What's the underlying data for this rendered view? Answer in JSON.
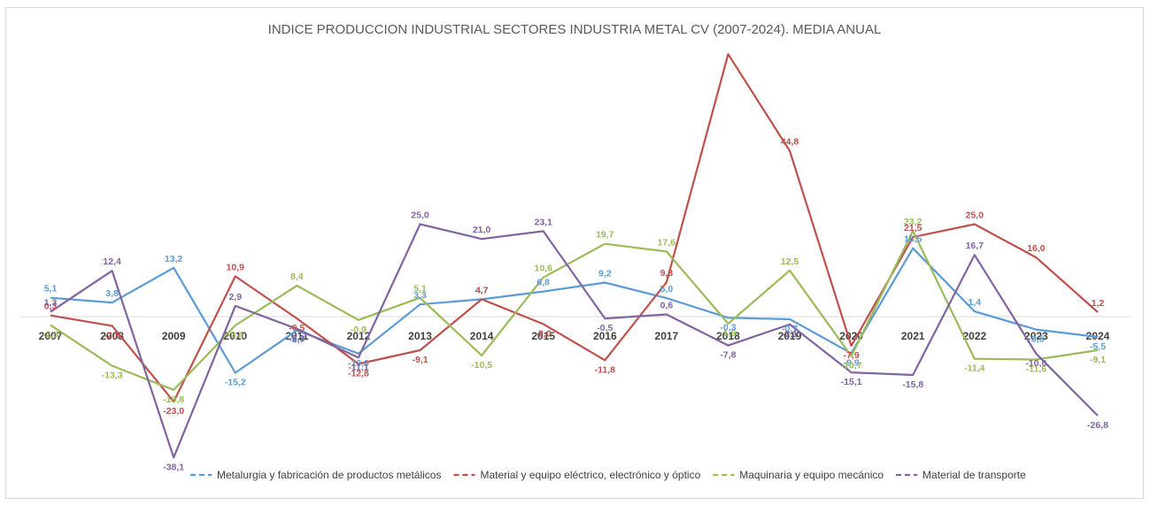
{
  "chart_data": {
    "type": "line",
    "title": "INDICE PRODUCCION INDUSTRIAL SECTORES INDUSTRIA METAL CV (2007-2024).  MEDIA ANUAL",
    "xlabel": "",
    "ylabel": "",
    "categories": [
      "2007",
      "2008",
      "2009",
      "2010",
      "2011",
      "2012",
      "2013",
      "2014",
      "2015",
      "2016",
      "2017",
      "2018",
      "2019",
      "2020",
      "2021",
      "2022",
      "2023",
      "2024"
    ],
    "ylim": [
      -45,
      65
    ],
    "grid": false,
    "legend_position": "bottom",
    "series": [
      {
        "name": "Metalurgia y fabricación de productos metálicos",
        "color": "#5b9bd5",
        "values": [
          5.1,
          3.8,
          13.2,
          -15.2,
          -3.7,
          -10.0,
          3.3,
          4.7,
          6.8,
          9.2,
          5.0,
          -0.3,
          -0.7,
          -9.9,
          18.5,
          1.4,
          -3.5,
          -5.5
        ],
        "labels": [
          "5,1",
          "3,8",
          "13,2",
          "-15,2",
          "-3,7",
          "-10,0",
          "3,3",
          "4,7",
          "6,8",
          "9,2",
          "5,0",
          "-0,3",
          "-0,7",
          "-9,9",
          "18,5",
          "1,4",
          "-3,5",
          "-5,5"
        ]
      },
      {
        "name": "Material y equipo eléctrico, electrónico y óptico",
        "color": "#c0504d",
        "values": [
          0.3,
          -2.5,
          -23.0,
          10.9,
          -0.5,
          -12.8,
          -9.1,
          4.7,
          -2.0,
          -11.8,
          9.3,
          71.0,
          44.8,
          -7.9,
          21.5,
          25.0,
          16.0,
          1.2
        ],
        "labels": [
          "0,3",
          "-2,5",
          "-23,0",
          "10,9",
          "-0,5",
          "-12,8",
          "-9,1",
          "4,7",
          "-2,0",
          "-11,8",
          "9,3",
          "",
          "44,8",
          "-7,9",
          "21,5",
          "25,0",
          "16,0",
          "1,2"
        ]
      },
      {
        "name": "Maquinaria y equipo mecánico",
        "color": "#9bbb59",
        "values": [
          -2.3,
          -13.3,
          -19.8,
          -2.4,
          8.4,
          -0.9,
          5.1,
          -10.5,
          10.6,
          19.7,
          17.6,
          -1.9,
          12.5,
          -10.7,
          23.2,
          -11.4,
          -11.6,
          -9.1
        ],
        "labels": [
          "-2,3",
          "-13,3",
          "-19,8",
          "-2,4",
          "8,4",
          "-0,9",
          "5,1",
          "-10,5",
          "10,6",
          "19,7",
          "17,6",
          "-1,9",
          "12,5",
          "-10,7",
          "23,2",
          "-11,4",
          "-11,6",
          "-9,1"
        ]
      },
      {
        "name": "Material de transporte",
        "color": "#8064a2",
        "values": [
          1.3,
          12.4,
          -38.1,
          2.9,
          -3.3,
          -11.1,
          25.0,
          21.0,
          23.1,
          -0.5,
          0.6,
          -7.8,
          -2.1,
          -15.1,
          -15.8,
          16.7,
          -10.0,
          -26.8
        ],
        "labels": [
          "1,3",
          "12,4",
          "-38,1",
          "2,9",
          "-3,3",
          "-11,1",
          "25,0",
          "21,0",
          "23,1",
          "-0,5",
          "0,6",
          "-7,8",
          "-2,1",
          "-15,1",
          "-15,8",
          "16,7",
          "-10,0",
          "-26,8"
        ]
      }
    ]
  }
}
